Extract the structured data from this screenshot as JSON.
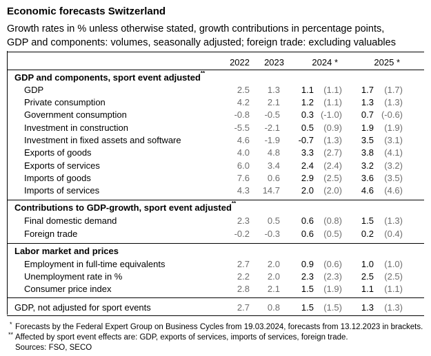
{
  "title": "Economic forecasts Switzerland",
  "subtitle_1": "Growth rates in % unless otherwise stated, growth contributions in percentage points,",
  "subtitle_2": "GDP and components: volumes, seasonally adjusted; foreign trade: excluding valuables",
  "columns": [
    "2022",
    "2023",
    "2024 *",
    "2025 *"
  ],
  "sections": [
    {
      "title": "GDP and components, sport event adjusted",
      "marker": "**",
      "rows": [
        {
          "label": "GDP",
          "v2022": "2.5",
          "v2023": "1.3",
          "v2024": "1.1",
          "p2024": "(1.1)",
          "v2025": "1.7",
          "p2025": "(1.7)"
        },
        {
          "label": "Private consumption",
          "v2022": "4.2",
          "v2023": "2.1",
          "v2024": "1.2",
          "p2024": "(1.1)",
          "v2025": "1.3",
          "p2025": "(1.3)"
        },
        {
          "label": "Government consumption",
          "v2022": "-0.8",
          "v2023": "-0.5",
          "v2024": "0.3",
          "p2024": "(-1.0)",
          "v2025": "0.7",
          "p2025": "(-0.6)"
        },
        {
          "label": "Investment in construction",
          "v2022": "-5.5",
          "v2023": "-2.1",
          "v2024": "0.5",
          "p2024": "(0.9)",
          "v2025": "1.9",
          "p2025": "(1.9)"
        },
        {
          "label": "Investment in fixed assets and software",
          "v2022": "4.6",
          "v2023": "-1.9",
          "v2024": "-0.7",
          "p2024": "(1.3)",
          "v2025": "3.5",
          "p2025": "(3.1)"
        },
        {
          "label": "Exports of goods",
          "v2022": "4.0",
          "v2023": "4.8",
          "v2024": "3.3",
          "p2024": "(2.7)",
          "v2025": "3.8",
          "p2025": "(4.1)"
        },
        {
          "label": "Exports of services",
          "v2022": "6.0",
          "v2023": "3.4",
          "v2024": "2.4",
          "p2024": "(2.4)",
          "v2025": "3.2",
          "p2025": "(3.2)"
        },
        {
          "label": "Imports of goods",
          "v2022": "7.6",
          "v2023": "0.6",
          "v2024": "2.9",
          "p2024": "(2.5)",
          "v2025": "3.6",
          "p2025": "(3.5)"
        },
        {
          "label": "Imports of services",
          "v2022": "4.3",
          "v2023": "14.7",
          "v2024": "2.0",
          "p2024": "(2.0)",
          "v2025": "4.6",
          "p2025": "(4.6)"
        }
      ]
    },
    {
      "title": "Contributions to GDP-growth, sport event adjusted",
      "marker": "**",
      "rows": [
        {
          "label": "Final domestic demand",
          "v2022": "2.3",
          "v2023": "0.5",
          "v2024": "0.6",
          "p2024": "(0.8)",
          "v2025": "1.5",
          "p2025": "(1.3)"
        },
        {
          "label": "Foreign trade",
          "v2022": "-0.2",
          "v2023": "-0.3",
          "v2024": "0.6",
          "p2024": "(0.5)",
          "v2025": "0.2",
          "p2025": "(0.4)"
        }
      ]
    },
    {
      "title": "Labor market and prices",
      "marker": "",
      "rows": [
        {
          "label": "Employment in full-time equivalents",
          "v2022": "2.7",
          "v2023": "2.0",
          "v2024": "0.9",
          "p2024": "(0.6)",
          "v2025": "1.0",
          "p2025": "(1.0)"
        },
        {
          "label": "Unemployment rate in %",
          "v2022": "2.2",
          "v2023": "2.0",
          "v2024": "2.3",
          "p2024": "(2.3)",
          "v2025": "2.5",
          "p2025": "(2.5)"
        },
        {
          "label": "Consumer price index",
          "v2022": "2.8",
          "v2023": "2.1",
          "v2024": "1.5",
          "p2024": "(1.9)",
          "v2025": "1.1",
          "p2025": "(1.1)"
        }
      ]
    }
  ],
  "final_row": {
    "label": "GDP, not adjusted for sport events",
    "v2022": "2.7",
    "v2023": "0.8",
    "v2024": "1.5",
    "p2024": "(1.5)",
    "v2025": "1.3",
    "p2025": "(1.3)"
  },
  "footnotes": {
    "note1_marker": "*",
    "note1": "Forecasts by the Federal Expert Group on Business Cycles from 19.03.2024, forecasts from 13.12.2023 in brackets.",
    "note2_marker": "**",
    "note2": "Affected by sport event effects are: GDP, exports of services, imports of services, foreign trade.",
    "sources": "Sources: FSO, SECO"
  }
}
